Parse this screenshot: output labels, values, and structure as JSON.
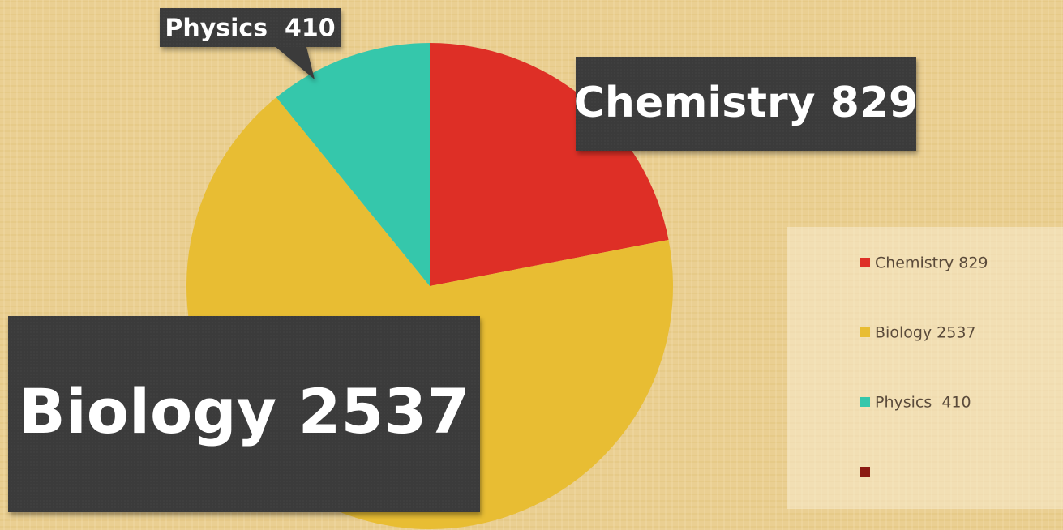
{
  "chart_data": {
    "type": "pie",
    "categories": [
      "Chemistry 829",
      "Biology 2537",
      "Physics  410",
      null
    ],
    "values": [
      829,
      2537,
      410,
      0
    ],
    "colors": [
      "#de2f26",
      "#e8bd33",
      "#35c7ab",
      "#8b1a12"
    ],
    "legend": "right"
  }
}
